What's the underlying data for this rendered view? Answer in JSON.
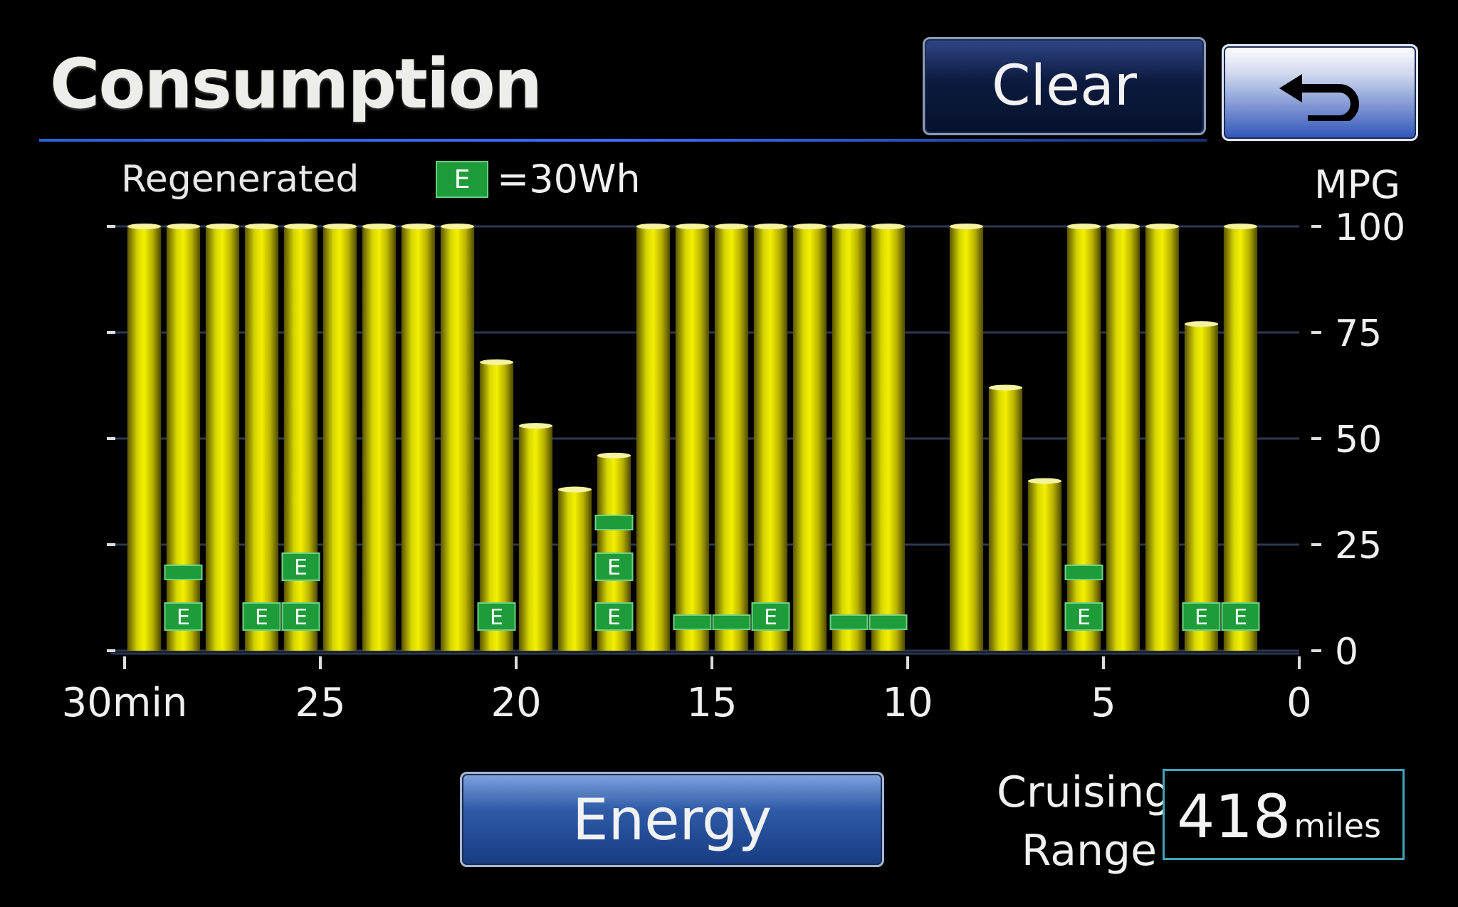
{
  "header": {
    "title": "Consumption",
    "clear_label": "Clear"
  },
  "icons": {
    "back": "return-arrow-icon",
    "energy_unit": "E"
  },
  "legend": {
    "regenerated_label": "Regenerated",
    "unit_symbol": "E",
    "unit_text": "=30Wh"
  },
  "footer": {
    "energy_label": "Energy",
    "cruising_range_label_line1": "Cruising",
    "cruising_range_label_line2": "Range",
    "cruising_range_value": "418",
    "cruising_range_unit": "miles"
  },
  "colors": {
    "bar": "#d8d800",
    "regen_box": "#1e9c3a",
    "accent_line": "#2a5fd8"
  },
  "chart_data": {
    "type": "bar",
    "ylabel": "MPG",
    "ylim": [
      0,
      100
    ],
    "yticks": [
      "100",
      "75",
      "50",
      "25",
      "0"
    ],
    "x_ticks": [
      "30min",
      "25",
      "20",
      "15",
      "10",
      "5",
      "0"
    ],
    "xlim_minutes": [
      30,
      0
    ],
    "x_minutes": [
      29.5,
      28.5,
      27.5,
      26.5,
      25.5,
      24.5,
      23.5,
      22.5,
      21.5,
      20.5,
      19.5,
      18.5,
      17.5,
      16.5,
      15.5,
      14.5,
      13.5,
      12.5,
      11.5,
      10.5,
      9.5,
      8.5,
      7.5,
      6.5,
      5.5,
      4.5,
      3.5,
      2.5,
      1.5,
      0.5
    ],
    "values": [
      100,
      100,
      100,
      100,
      100,
      100,
      100,
      100,
      100,
      68,
      53,
      38,
      46,
      100,
      100,
      100,
      100,
      100,
      100,
      100,
      null,
      100,
      62,
      40,
      100,
      100,
      100,
      77,
      100,
      0
    ],
    "regenerated_E": [
      0,
      1.5,
      0,
      1,
      2,
      0,
      0,
      0,
      0,
      1,
      0,
      0,
      2.5,
      0,
      0.5,
      0.5,
      1,
      0,
      0.5,
      0.5,
      0,
      0,
      0,
      0,
      1.5,
      0,
      0,
      1,
      1,
      0
    ]
  }
}
